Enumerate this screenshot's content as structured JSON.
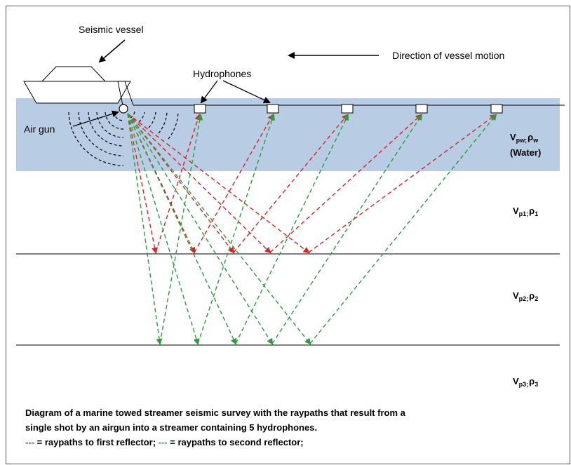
{
  "labels": {
    "vessel": "Seismic vessel",
    "direction": "Direction of vessel motion",
    "hydrophones": "Hydrophones",
    "airgun": "Air gun",
    "water_v": "V",
    "water_v_sub": "pw;",
    "water_rho": "ρ",
    "water_rho_sub": "w",
    "water_name": "(Water)",
    "layer1_v": "V",
    "layer1_v_sub": "p1;",
    "layer1_rho": "ρ",
    "layer1_rho_sub": "1",
    "layer2_v": "V",
    "layer2_v_sub": "p2;",
    "layer2_rho": "ρ",
    "layer2_rho_sub": "2",
    "layer3_v": "V",
    "layer3_v_sub": "p3;",
    "layer3_rho": "ρ",
    "layer3_rho_sub": "3"
  },
  "caption": {
    "line1": "Diagram of a marine towed streamer seismic survey with the raypaths that result from a",
    "line2": "single shot by an airgun into a streamer containing 5 hydrophones.",
    "legend_red_dash": "---",
    "legend_red_text": " = raypaths to first reflector;",
    "legend_green_dash": " ---",
    "legend_green_text": " = raypaths to second reflector;"
  },
  "colors": {
    "water": "#b8cce4",
    "first_reflector_rays": "#e02020",
    "second_reflector_rays": "#2a9d3a"
  },
  "counts": {
    "hydrophones": 5
  }
}
